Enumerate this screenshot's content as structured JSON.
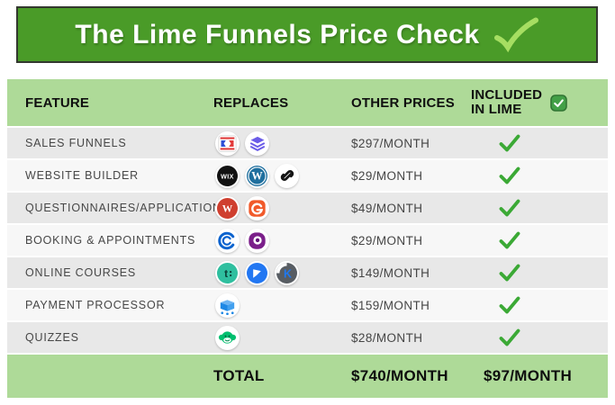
{
  "banner": {
    "title": "The Lime Funnels Price Check"
  },
  "header": {
    "feature": "FEATURE",
    "replaces": "REPLACES",
    "other_prices": "OTHER PRICES",
    "included_line1": "INCLUDED",
    "included_line2": "IN LIME"
  },
  "chart_data": {
    "type": "table",
    "title": "The Lime Funnels Price Check",
    "columns": [
      "FEATURE",
      "REPLACES",
      "OTHER PRICES",
      "INCLUDED IN LIME"
    ],
    "rows": [
      {
        "feature": "SALES FUNNELS",
        "replaces_icons": [
          "clickfunnels",
          "layers"
        ],
        "other_price": "$297/MONTH",
        "included_in_lime": true
      },
      {
        "feature": "WEBSITE BUILDER",
        "replaces_icons": [
          "wix",
          "wordpress",
          "squarespace"
        ],
        "other_price": "$29/MONTH",
        "included_in_lime": true
      },
      {
        "feature": "QUESTIONNAIRES/APPLICATION",
        "replaces_icons": [
          "wufoo",
          "gravityforms"
        ],
        "other_price": "$49/MONTH",
        "included_in_lime": true
      },
      {
        "feature": "BOOKING & APPOINTMENTS",
        "replaces_icons": [
          "calendly",
          "acuity"
        ],
        "other_price": "$29/MONTH",
        "included_in_lime": true
      },
      {
        "feature": "ONLINE COURSES",
        "replaces_icons": [
          "teachable",
          "kajabi",
          "kartra"
        ],
        "other_price": "$149/MONTH",
        "included_in_lime": true
      },
      {
        "feature": "PAYMENT PROCESSOR",
        "replaces_icons": [
          "samcart"
        ],
        "other_price": "$159/MONTH",
        "included_in_lime": true
      },
      {
        "feature": "QUIZZES",
        "replaces_icons": [
          "surveymonkey"
        ],
        "other_price": "$28/MONTH",
        "included_in_lime": true
      }
    ],
    "total_row": {
      "label": "TOTAL",
      "other_prices_total": "$740/MONTH",
      "included_in_lime_total": "$97/MONTH"
    }
  },
  "colors": {
    "banner_green": "#4a9b28",
    "banner_border": "#33382f",
    "banner_check_green": "#a6de62",
    "table_header_green": "#aeda98",
    "row_gray": "#e8e8e8",
    "row_light": "#f7f7f7",
    "check_green": "#3ba935",
    "checkbox_green": "#43a047"
  }
}
